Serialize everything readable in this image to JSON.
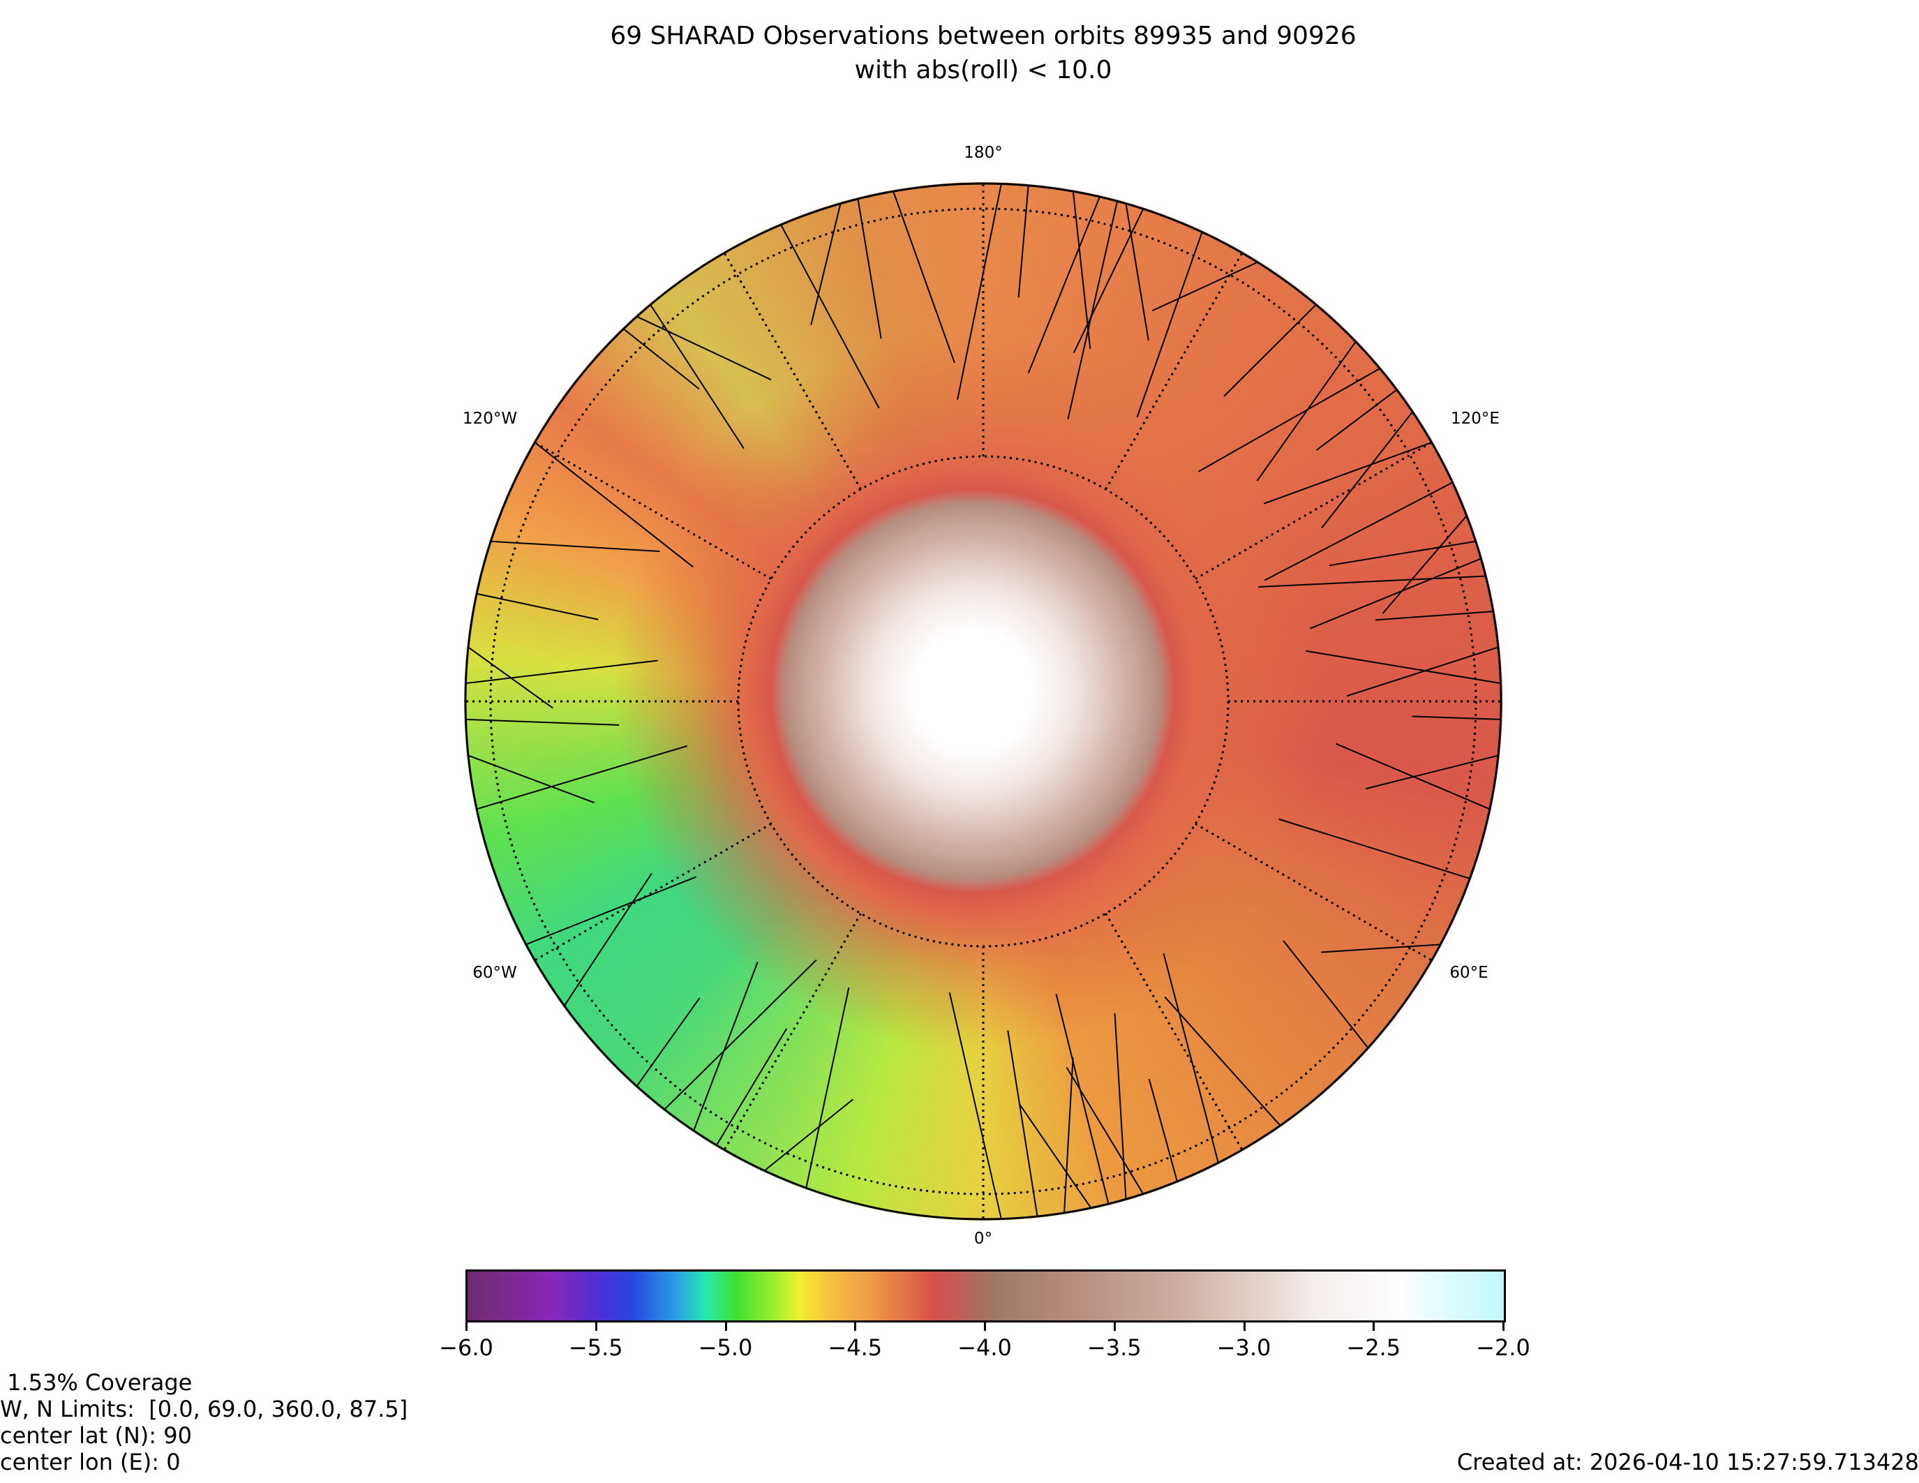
{
  "chart_data": {
    "type": "heatmap",
    "title_line1": "69 SHARAD Observations between orbits 89935 and 90926",
    "title_line2": "with abs(roll) < 10.0",
    "projection": "north polar stereographic",
    "longitude_labels": {
      "top": "180°",
      "upper_right": "120°E",
      "lower_right": "60°E",
      "bottom": "0°",
      "lower_left": "60°W",
      "upper_left": "120°W"
    },
    "colorbar": {
      "range": [
        -6.0,
        -2.0
      ],
      "ticks": [
        "−6.0",
        "−5.5",
        "−5.0",
        "−4.5",
        "−4.0",
        "−3.5",
        "−3.0",
        "−2.5",
        "−2.0"
      ],
      "colormap_stops": [
        "#6e2a6e",
        "#8a28b8",
        "#2848e0",
        "#28e8b0",
        "#40e030",
        "#f0f030",
        "#ee9a48",
        "#d8504a",
        "#a07868",
        "#c8a89c",
        "#ffffff",
        "#c0f8fc"
      ]
    },
    "observation_count": 69,
    "orbit_range": [
      89935,
      90926
    ]
  },
  "info": {
    "coverage": " 1.53% Coverage",
    "limits": "W, N Limits:  [0.0, 69.0, 360.0, 87.5]",
    "center_lat": "center lat (N): 90",
    "center_lon": "center lon (E): 0"
  },
  "created": "Created at: 2026-04-10 15:27:59.713428"
}
